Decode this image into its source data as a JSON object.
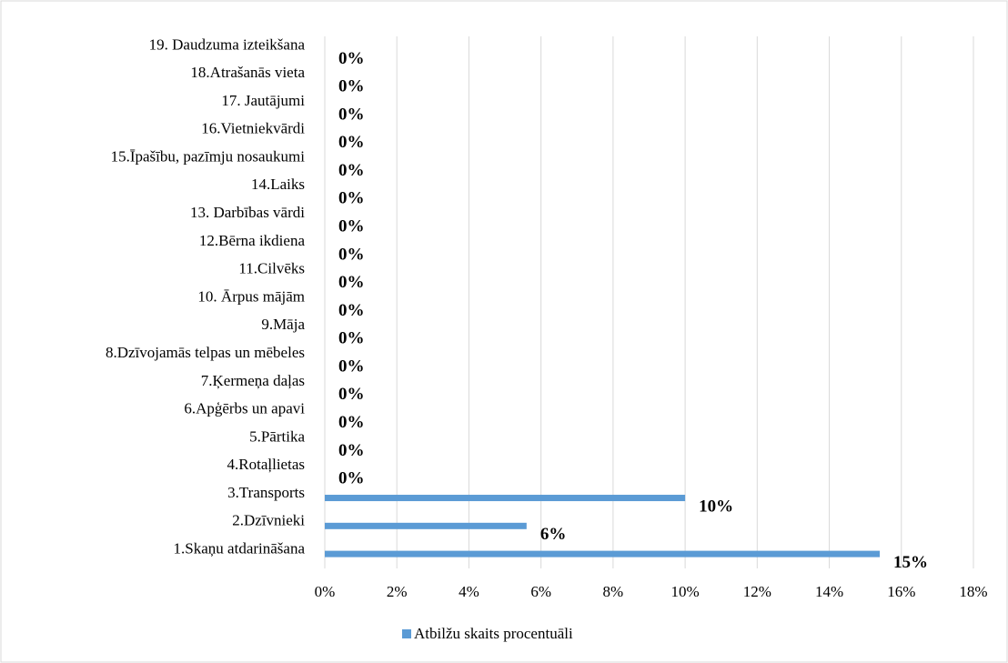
{
  "chart_data": {
    "type": "bar",
    "orientation": "horizontal",
    "categories": [
      "1.Skaņu atdarināšana",
      "2.Dzīvnieki",
      "3.Transports",
      "4.Rotaļlietas",
      "5.Pārtika",
      "6.Apģērbs un apavi",
      "7.Ķermeņa daļas",
      "8.Dzīvojamās telpas un mēbeles",
      "9.Māja",
      "10. Ārpus mājām",
      "11.Cilvēks",
      "12.Bērna ikdiena",
      "13. Darbības vārdi",
      "14.Laiks",
      "15.Īpašību, pazīmju nosaukumi",
      "16.Vietniekvārdi",
      "17. Jautājumi",
      "18.Atrašanās vieta",
      "19. Daudzuma izteikšana"
    ],
    "series": [
      {
        "name": "Atbilžu skaits procentuāli",
        "color": "#5b9bd5",
        "values": [
          15.4,
          5.6,
          10,
          0,
          0,
          0,
          0,
          0,
          0,
          0,
          0,
          0,
          0,
          0,
          0,
          0,
          0,
          0,
          0
        ],
        "value_labels": [
          "15%",
          "6%",
          "10%",
          "0%",
          "0%",
          "0%",
          "0%",
          "0%",
          "0%",
          "0%",
          "0%",
          "0%",
          "0%",
          "0%",
          "0%",
          "0%",
          "0%",
          "0%",
          "0%"
        ]
      }
    ],
    "xlim": [
      0,
      18
    ],
    "xticks": [
      {
        "value": 0,
        "label": "0%"
      },
      {
        "value": 2,
        "label": "2%"
      },
      {
        "value": 4,
        "label": "4%"
      },
      {
        "value": 6,
        "label": "6%"
      },
      {
        "value": 8,
        "label": "8%"
      },
      {
        "value": 10,
        "label": "10%"
      },
      {
        "value": 12,
        "label": "12%"
      },
      {
        "value": 14,
        "label": "14%"
      },
      {
        "value": 16,
        "label": "16%"
      },
      {
        "value": 18,
        "label": "18%"
      }
    ],
    "grid": true,
    "legend": "bottom"
  }
}
